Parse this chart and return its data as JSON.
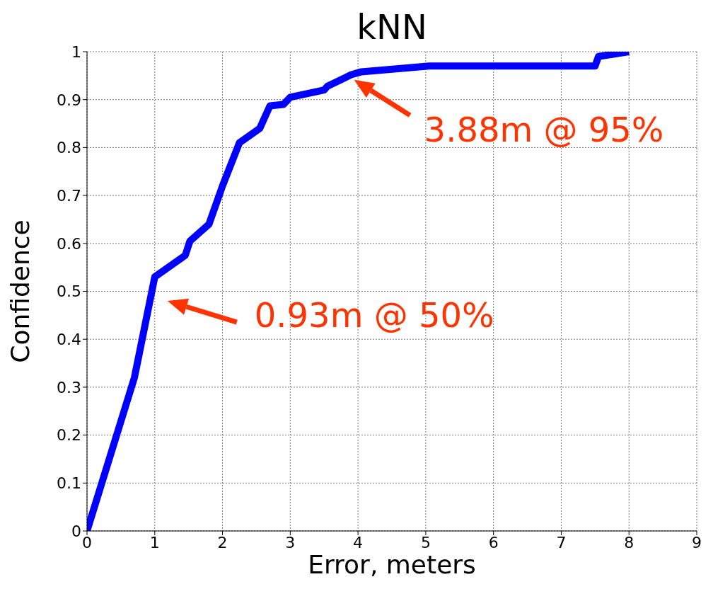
{
  "chart_data": {
    "type": "line",
    "title": "kNN",
    "xlabel": "Error, meters",
    "ylabel": "Confidence",
    "x": [
      0,
      0.7,
      1.0,
      1.45,
      1.52,
      1.8,
      2.0,
      2.25,
      2.55,
      2.7,
      2.9,
      3.0,
      3.5,
      3.55,
      3.8,
      3.9,
      4.05,
      5.05,
      7.5,
      7.55,
      8
    ],
    "series": [
      {
        "color": "#0000ff",
        "values": [
          0,
          0.32,
          0.53,
          0.575,
          0.605,
          0.64,
          0.72,
          0.81,
          0.84,
          0.887,
          0.89,
          0.905,
          0.92,
          0.928,
          0.945,
          0.952,
          0.958,
          0.97,
          0.97,
          0.99,
          1
        ]
      }
    ],
    "xlim": [
      0,
      9
    ],
    "xticks": [
      0,
      1,
      2,
      3,
      4,
      5,
      6,
      7,
      8,
      9
    ],
    "ylim": [
      0,
      1
    ],
    "yticks": [
      0,
      0.1,
      0.2,
      0.3,
      0.4,
      0.5,
      0.6,
      0.7,
      0.8,
      0.9,
      1
    ],
    "grid": true,
    "marker": "none",
    "line_style": "solid",
    "annotations": [
      "0.93m @ 50%",
      {
        "text": "3.88m @ 95%",
        "x": 3.88,
        "y": 0.95
      }
    ]
  }
}
